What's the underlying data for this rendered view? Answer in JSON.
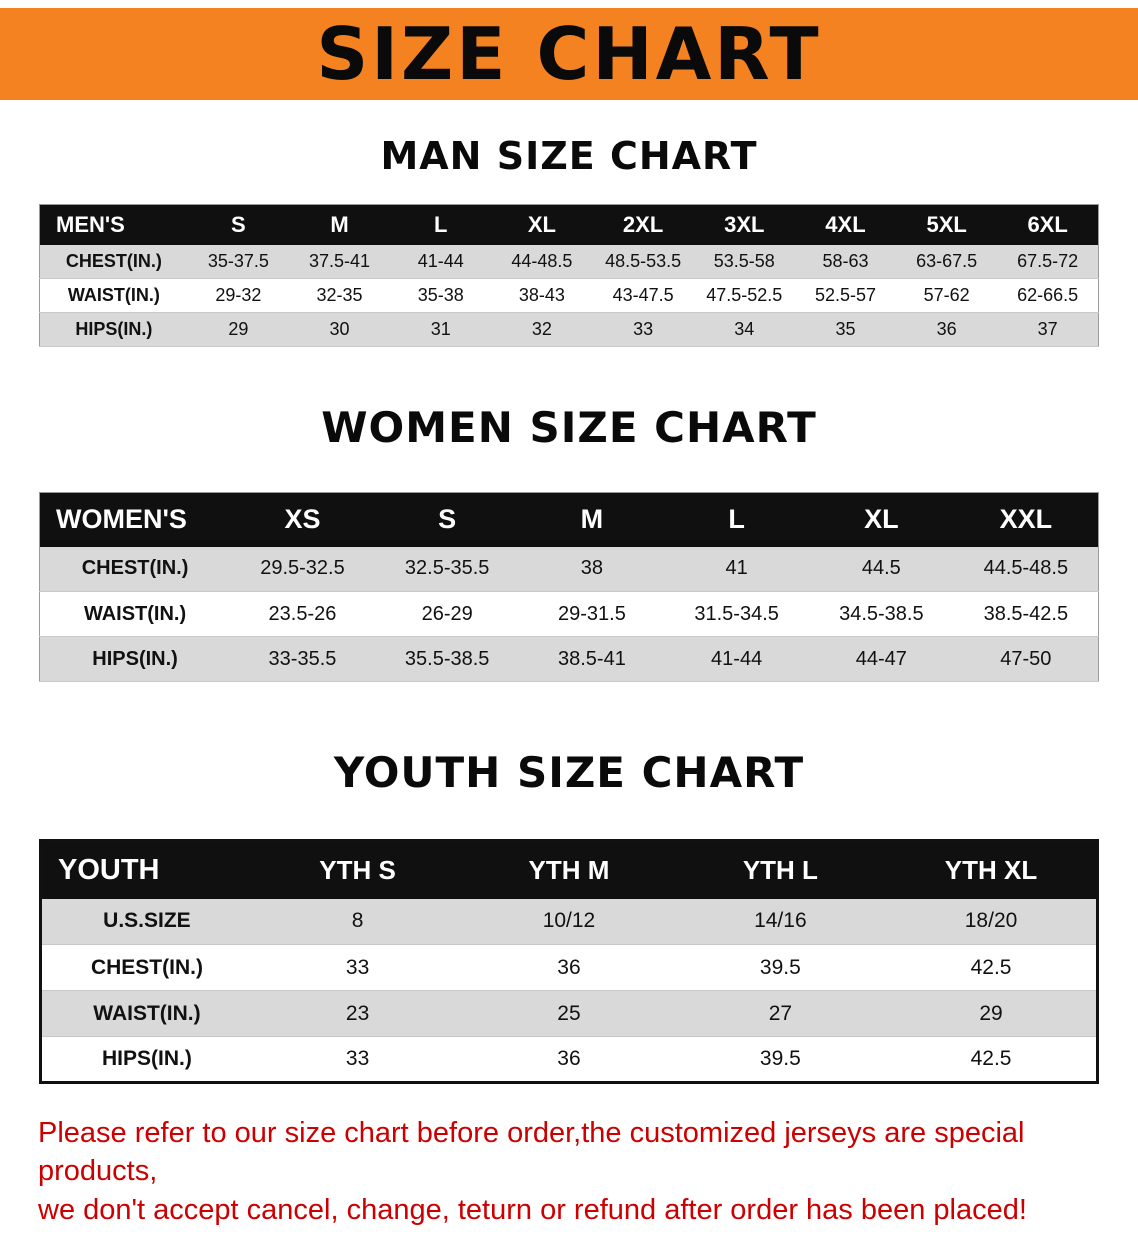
{
  "colors": {
    "accent": "#f58220",
    "table_head": "#101010",
    "stripe": "#d9d9d9",
    "warning": "#cc0000"
  },
  "banner": {
    "title": "SIZE CHART"
  },
  "men": {
    "heading": "MAN SIZE CHART",
    "header": [
      "MEN'S",
      "S",
      "M",
      "L",
      "XL",
      "2XL",
      "3XL",
      "4XL",
      "5XL",
      "6XL"
    ],
    "rows": [
      [
        "CHEST(IN.)",
        "35-37.5",
        "37.5-41",
        "41-44",
        "44-48.5",
        "48.5-53.5",
        "53.5-58",
        "58-63",
        "63-67.5",
        "67.5-72"
      ],
      [
        "WAIST(IN.)",
        "29-32",
        "32-35",
        "35-38",
        "38-43",
        "43-47.5",
        "47.5-52.5",
        "52.5-57",
        "57-62",
        "62-66.5"
      ],
      [
        "HIPS(IN.)",
        "29",
        "30",
        "31",
        "32",
        "33",
        "34",
        "35",
        "36",
        "37"
      ]
    ]
  },
  "women": {
    "heading": "WOMEN SIZE CHART",
    "header": [
      "WOMEN'S",
      "XS",
      "S",
      "M",
      "L",
      "XL",
      "XXL"
    ],
    "rows": [
      [
        "CHEST(IN.)",
        "29.5-32.5",
        "32.5-35.5",
        "38",
        "41",
        "44.5",
        "44.5-48.5"
      ],
      [
        "WAIST(IN.)",
        "23.5-26",
        "26-29",
        "29-31.5",
        "31.5-34.5",
        "34.5-38.5",
        "38.5-42.5"
      ],
      [
        "HIPS(IN.)",
        "33-35.5",
        "35.5-38.5",
        "38.5-41",
        "41-44",
        "44-47",
        "47-50"
      ]
    ]
  },
  "youth": {
    "heading": "YOUTH SIZE CHART",
    "header": [
      "YOUTH",
      "YTH S",
      "YTH M",
      "YTH L",
      "YTH XL"
    ],
    "rows": [
      [
        "U.S.SIZE",
        "8",
        "10/12",
        "14/16",
        "18/20"
      ],
      [
        "CHEST(IN.)",
        "33",
        "36",
        "39.5",
        "42.5"
      ],
      [
        "WAIST(IN.)",
        "23",
        "25",
        "27",
        "29"
      ],
      [
        "HIPS(IN.)",
        "33",
        "36",
        "39.5",
        "42.5"
      ]
    ]
  },
  "footer": {
    "line1": "Please refer to our size chart before order,the customized jerseys are special products,",
    "line2": "we don't accept cancel, change, teturn or refund after order has been placed!"
  }
}
